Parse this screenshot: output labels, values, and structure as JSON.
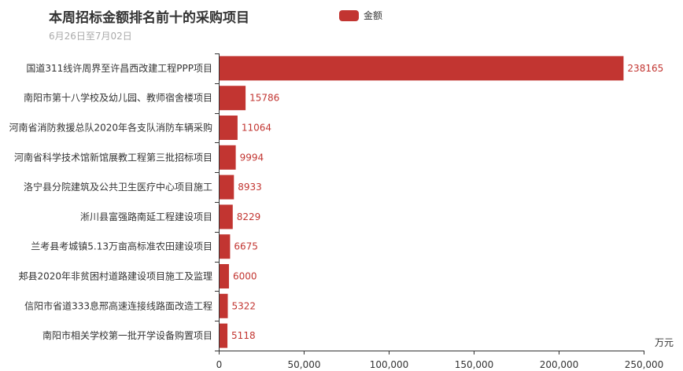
{
  "title": "本周招标金额排名前十的采购项目",
  "subtitle": "6月26日至7月02日",
  "legend": {
    "label": "金额",
    "color": "#c23531"
  },
  "chart_data": {
    "type": "bar",
    "orientation": "horizontal",
    "title": "本周招标金额排名前十的采购项目",
    "subtitle": "6月26日至7月02日",
    "xlabel": "万元",
    "ylabel": "",
    "xlim": [
      0,
      250000
    ],
    "x_ticks": [
      "0",
      "50,000",
      "100,000",
      "150,000",
      "200,000",
      "250,000"
    ],
    "legend_position": "top",
    "categories": [
      "国道311线许周界至许昌西改建工程PPP项目",
      "南阳市第十八学校及幼儿园、教师宿舍楼项目",
      "河南省消防救援总队2020年各支队消防车辆采购",
      "河南省科学技术馆新馆展教工程第三批招标项目",
      "洛宁县分院建筑及公共卫生医疗中心项目施工",
      "淅川县富强路南延工程建设项目",
      "兰考县考城镇5.13万亩高标准农田建设项目",
      "郏县2020年非贫困村道路建设项目施工及监理",
      "信阳市省道333息邢高速连接线路面改造工程",
      "南阳市相关学校第一批开学设备购置项目"
    ],
    "series": [
      {
        "name": "金额",
        "color": "#c23531",
        "values": [
          238165,
          15786,
          11064,
          9994,
          8933,
          8229,
          6675,
          6000,
          5322,
          5118
        ]
      }
    ]
  }
}
